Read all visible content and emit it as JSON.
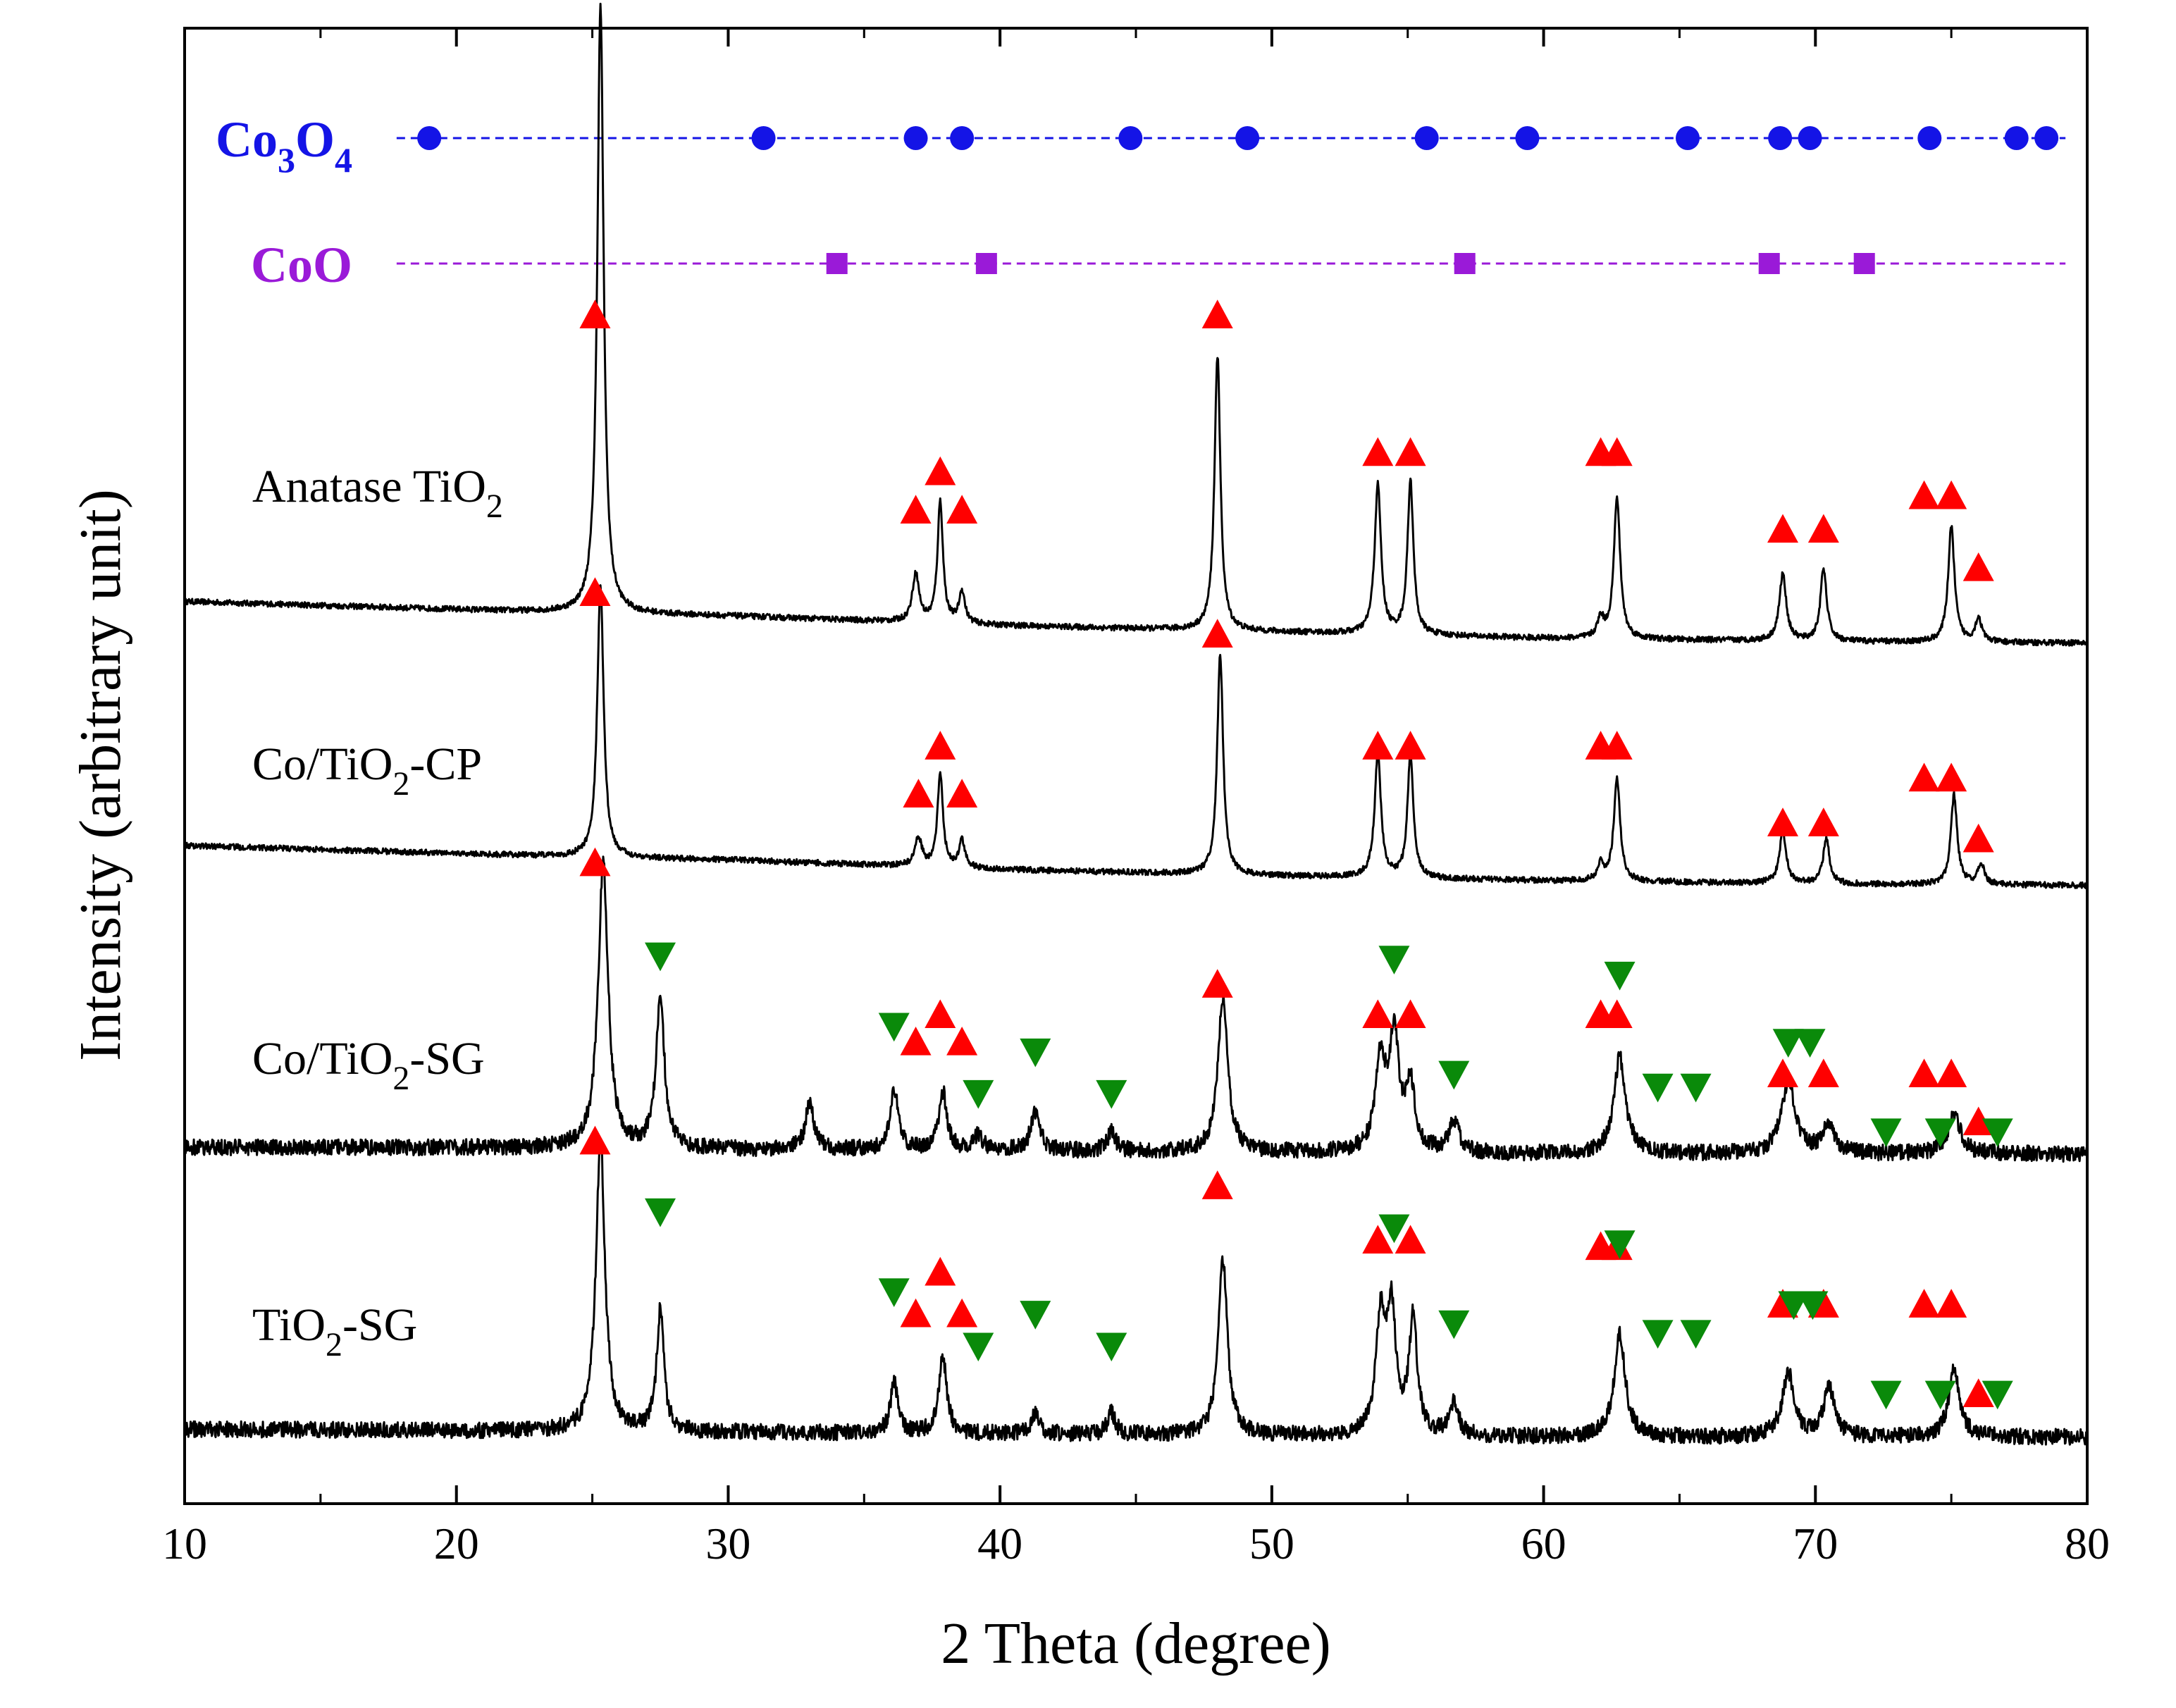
{
  "chart_data": {
    "type": "line",
    "xlabel": "2 Theta (degree)",
    "ylabel": "Intensity (arbitrary unit)",
    "xlim": [
      10,
      80
    ],
    "xticks": [
      10,
      20,
      30,
      40,
      50,
      60,
      70,
      80
    ],
    "y_ticks_shown": false,
    "colors": {
      "pattern": "#000000",
      "anatase_marker": "#ff0000",
      "rutile_marker": "#0a8a0a",
      "co3o4": "#1414e6",
      "coo": "#9a1ad8"
    },
    "reference_rows": [
      {
        "name": "Co3O4",
        "label_main": "Co",
        "label_sub1": "3",
        "label_mid": "O",
        "label_sub2": "4",
        "marker": "circle",
        "color": "#1414e6",
        "peaks": [
          19.0,
          31.3,
          36.9,
          38.6,
          44.8,
          49.1,
          55.7,
          59.4,
          65.3,
          68.7,
          69.8,
          74.2,
          77.4,
          78.5
        ]
      },
      {
        "name": "CoO",
        "label_main": "CoO",
        "marker": "square",
        "color": "#9a1ad8",
        "peaks": [
          34.0,
          39.5,
          57.1,
          68.3,
          71.8
        ]
      }
    ],
    "series": [
      {
        "name": "Anatase TiO2",
        "label_main": "Anatase TiO",
        "label_sub": "2",
        "label_tail": "",
        "baseline": [
          [
            10,
            0.31
          ],
          [
            20,
            0.26
          ],
          [
            24,
            0.24
          ],
          [
            30,
            0.22
          ],
          [
            40,
            0.16
          ],
          [
            50,
            0.12
          ],
          [
            60,
            0.08
          ],
          [
            70,
            0.06
          ],
          [
            80,
            0.05
          ]
        ],
        "noise": 0.018,
        "peaks": [
          {
            "x": 25.3,
            "h": 3.8,
            "w": 0.14
          },
          {
            "x": 36.9,
            "h": 0.3,
            "w": 0.15
          },
          {
            "x": 37.8,
            "h": 0.76,
            "w": 0.12
          },
          {
            "x": 38.6,
            "h": 0.2,
            "w": 0.13
          },
          {
            "x": 48.0,
            "h": 1.72,
            "w": 0.13
          },
          {
            "x": 53.9,
            "h": 0.93,
            "w": 0.14
          },
          {
            "x": 55.1,
            "h": 0.96,
            "w": 0.13
          },
          {
            "x": 62.1,
            "h": 0.12,
            "w": 0.14
          },
          {
            "x": 62.7,
            "h": 0.88,
            "w": 0.14
          },
          {
            "x": 68.8,
            "h": 0.42,
            "w": 0.15
          },
          {
            "x": 70.3,
            "h": 0.45,
            "w": 0.14
          },
          {
            "x": 75.0,
            "h": 0.72,
            "w": 0.14
          },
          {
            "x": 76.0,
            "h": 0.15,
            "w": 0.14
          }
        ],
        "anatase_markers": [
          {
            "x": 25.1,
            "y": 2.1
          },
          {
            "x": 36.9,
            "y": 0.88
          },
          {
            "x": 37.8,
            "y": 1.12
          },
          {
            "x": 38.6,
            "y": 0.88
          },
          {
            "x": 48.0,
            "y": 2.1
          },
          {
            "x": 53.9,
            "y": 1.24
          },
          {
            "x": 55.1,
            "y": 1.24
          },
          {
            "x": 62.1,
            "y": 1.24
          },
          {
            "x": 62.7,
            "y": 1.24
          },
          {
            "x": 68.8,
            "y": 0.76
          },
          {
            "x": 70.3,
            "y": 0.76
          },
          {
            "x": 74.0,
            "y": 0.97
          },
          {
            "x": 75.0,
            "y": 0.97
          },
          {
            "x": 76.0,
            "y": 0.52
          }
        ],
        "rutile_markers": []
      },
      {
        "name": "Co/TiO2-CP",
        "label_main": "Co/TiO",
        "label_sub": "2",
        "label_tail": "-CP",
        "baseline": [
          [
            10,
            0.3
          ],
          [
            20,
            0.25
          ],
          [
            24,
            0.23
          ],
          [
            30,
            0.21
          ],
          [
            40,
            0.15
          ],
          [
            50,
            0.11
          ],
          [
            60,
            0.08
          ],
          [
            70,
            0.06
          ],
          [
            80,
            0.05
          ]
        ],
        "noise": 0.018,
        "peaks": [
          {
            "x": 25.3,
            "h": 1.7,
            "w": 0.14
          },
          {
            "x": 37.0,
            "h": 0.18,
            "w": 0.15
          },
          {
            "x": 37.8,
            "h": 0.58,
            "w": 0.12
          },
          {
            "x": 38.6,
            "h": 0.17,
            "w": 0.13
          },
          {
            "x": 48.1,
            "h": 1.38,
            "w": 0.13
          },
          {
            "x": 53.9,
            "h": 0.77,
            "w": 0.14
          },
          {
            "x": 55.1,
            "h": 0.77,
            "w": 0.13
          },
          {
            "x": 62.1,
            "h": 0.1,
            "w": 0.14
          },
          {
            "x": 62.7,
            "h": 0.64,
            "w": 0.14
          },
          {
            "x": 68.8,
            "h": 0.32,
            "w": 0.15
          },
          {
            "x": 70.4,
            "h": 0.28,
            "w": 0.14
          },
          {
            "x": 75.1,
            "h": 0.56,
            "w": 0.14
          },
          {
            "x": 76.1,
            "h": 0.13,
            "w": 0.14
          }
        ],
        "anatase_markers": [
          {
            "x": 25.1,
            "y": 1.88
          },
          {
            "x": 37.0,
            "y": 0.62
          },
          {
            "x": 37.8,
            "y": 0.92
          },
          {
            "x": 38.6,
            "y": 0.62
          },
          {
            "x": 48.0,
            "y": 1.62
          },
          {
            "x": 53.9,
            "y": 0.92
          },
          {
            "x": 55.1,
            "y": 0.92
          },
          {
            "x": 62.1,
            "y": 0.92
          },
          {
            "x": 62.7,
            "y": 0.92
          },
          {
            "x": 68.8,
            "y": 0.44
          },
          {
            "x": 70.3,
            "y": 0.44
          },
          {
            "x": 74.0,
            "y": 0.72
          },
          {
            "x": 75.0,
            "y": 0.72
          },
          {
            "x": 76.0,
            "y": 0.34
          }
        ],
        "rutile_markers": []
      },
      {
        "name": "Co/TiO2-SG",
        "label_main": "Co/TiO",
        "label_sub": "2",
        "label_tail": "-SG",
        "baseline": [
          [
            10,
            0.12
          ],
          [
            20,
            0.12
          ],
          [
            30,
            0.11
          ],
          [
            40,
            0.1
          ],
          [
            50,
            0.09
          ],
          [
            60,
            0.08
          ],
          [
            70,
            0.08
          ],
          [
            80,
            0.08
          ]
        ],
        "noise": 0.05,
        "peaks": [
          {
            "x": 25.4,
            "h": 1.78,
            "w": 0.22
          },
          {
            "x": 27.5,
            "h": 0.95,
            "w": 0.18
          },
          {
            "x": 33.0,
            "h": 0.3,
            "w": 0.18
          },
          {
            "x": 36.1,
            "h": 0.38,
            "w": 0.18
          },
          {
            "x": 37.9,
            "h": 0.36,
            "w": 0.18
          },
          {
            "x": 39.2,
            "h": 0.1,
            "w": 0.18
          },
          {
            "x": 41.3,
            "h": 0.24,
            "w": 0.2
          },
          {
            "x": 44.1,
            "h": 0.12,
            "w": 0.18
          },
          {
            "x": 48.2,
            "h": 0.96,
            "w": 0.22
          },
          {
            "x": 54.0,
            "h": 0.55,
            "w": 0.22
          },
          {
            "x": 54.5,
            "h": 0.7,
            "w": 0.22
          },
          {
            "x": 55.1,
            "h": 0.4,
            "w": 0.2
          },
          {
            "x": 56.7,
            "h": 0.2,
            "w": 0.22
          },
          {
            "x": 62.8,
            "h": 0.6,
            "w": 0.26
          },
          {
            "x": 69.0,
            "h": 0.45,
            "w": 0.3
          },
          {
            "x": 70.5,
            "h": 0.18,
            "w": 0.26
          },
          {
            "x": 75.1,
            "h": 0.25,
            "w": 0.28
          }
        ],
        "anatase_markers": [
          {
            "x": 25.1,
            "y": 1.9
          },
          {
            "x": 36.9,
            "y": 0.78
          },
          {
            "x": 37.8,
            "y": 0.95
          },
          {
            "x": 38.6,
            "y": 0.78
          },
          {
            "x": 48.0,
            "y": 1.14
          },
          {
            "x": 53.9,
            "y": 0.95
          },
          {
            "x": 55.1,
            "y": 0.95
          },
          {
            "x": 62.1,
            "y": 0.95
          },
          {
            "x": 62.7,
            "y": 0.95
          },
          {
            "x": 68.8,
            "y": 0.58
          },
          {
            "x": 70.3,
            "y": 0.58
          },
          {
            "x": 74.0,
            "y": 0.58
          },
          {
            "x": 75.0,
            "y": 0.58
          },
          {
            "x": 76.0,
            "y": 0.28
          }
        ],
        "rutile_markers": [
          {
            "x": 27.5,
            "y": 1.32
          },
          {
            "x": 36.1,
            "y": 0.88
          },
          {
            "x": 39.2,
            "y": 0.46
          },
          {
            "x": 41.3,
            "y": 0.72
          },
          {
            "x": 44.1,
            "y": 0.46
          },
          {
            "x": 54.5,
            "y": 1.3
          },
          {
            "x": 56.7,
            "y": 0.58
          },
          {
            "x": 62.8,
            "y": 1.2
          },
          {
            "x": 64.2,
            "y": 0.5
          },
          {
            "x": 65.6,
            "y": 0.5
          },
          {
            "x": 69.0,
            "y": 0.78
          },
          {
            "x": 69.8,
            "y": 0.78
          },
          {
            "x": 72.6,
            "y": 0.22
          },
          {
            "x": 74.6,
            "y": 0.22
          },
          {
            "x": 76.7,
            "y": 0.22
          }
        ]
      },
      {
        "name": "TiO2-SG",
        "label_main": "TiO",
        "label_sub": "2",
        "label_tail": "-SG",
        "baseline": [
          [
            10,
            0.14
          ],
          [
            20,
            0.13
          ],
          [
            30,
            0.12
          ],
          [
            40,
            0.11
          ],
          [
            50,
            0.1
          ],
          [
            60,
            0.09
          ],
          [
            70,
            0.09
          ],
          [
            80,
            0.09
          ]
        ],
        "noise": 0.05,
        "peaks": [
          {
            "x": 25.3,
            "h": 1.82,
            "w": 0.2
          },
          {
            "x": 27.5,
            "h": 0.76,
            "w": 0.16
          },
          {
            "x": 36.1,
            "h": 0.32,
            "w": 0.16
          },
          {
            "x": 37.9,
            "h": 0.48,
            "w": 0.17
          },
          {
            "x": 41.3,
            "h": 0.12,
            "w": 0.18
          },
          {
            "x": 44.1,
            "h": 0.14,
            "w": 0.16
          },
          {
            "x": 48.2,
            "h": 1.1,
            "w": 0.2
          },
          {
            "x": 54.0,
            "h": 0.7,
            "w": 0.2
          },
          {
            "x": 54.4,
            "h": 0.74,
            "w": 0.2
          },
          {
            "x": 55.2,
            "h": 0.72,
            "w": 0.18
          },
          {
            "x": 56.7,
            "h": 0.2,
            "w": 0.2
          },
          {
            "x": 62.8,
            "h": 0.65,
            "w": 0.24
          },
          {
            "x": 69.0,
            "h": 0.4,
            "w": 0.26
          },
          {
            "x": 70.5,
            "h": 0.3,
            "w": 0.24
          },
          {
            "x": 75.1,
            "h": 0.42,
            "w": 0.24
          }
        ],
        "anatase_markers": [
          {
            "x": 25.1,
            "y": 1.94
          },
          {
            "x": 36.9,
            "y": 0.86
          },
          {
            "x": 37.8,
            "y": 1.12
          },
          {
            "x": 38.6,
            "y": 0.86
          },
          {
            "x": 48.0,
            "y": 1.66
          },
          {
            "x": 53.9,
            "y": 1.32
          },
          {
            "x": 55.1,
            "y": 1.32
          },
          {
            "x": 62.1,
            "y": 1.28
          },
          {
            "x": 62.7,
            "y": 1.28
          },
          {
            "x": 68.8,
            "y": 0.92
          },
          {
            "x": 70.3,
            "y": 0.92
          },
          {
            "x": 74.0,
            "y": 0.92
          },
          {
            "x": 75.0,
            "y": 0.92
          },
          {
            "x": 76.0,
            "y": 0.36
          }
        ],
        "rutile_markers": [
          {
            "x": 27.5,
            "y": 1.5
          },
          {
            "x": 36.1,
            "y": 1.0
          },
          {
            "x": 39.2,
            "y": 0.66
          },
          {
            "x": 41.3,
            "y": 0.86
          },
          {
            "x": 44.1,
            "y": 0.66
          },
          {
            "x": 54.5,
            "y": 1.4
          },
          {
            "x": 56.7,
            "y": 0.8
          },
          {
            "x": 62.8,
            "y": 1.3
          },
          {
            "x": 64.2,
            "y": 0.74
          },
          {
            "x": 65.6,
            "y": 0.74
          },
          {
            "x": 69.2,
            "y": 0.92
          },
          {
            "x": 69.9,
            "y": 0.92
          },
          {
            "x": 72.6,
            "y": 0.36
          },
          {
            "x": 74.6,
            "y": 0.36
          },
          {
            "x": 76.7,
            "y": 0.36
          }
        ]
      }
    ]
  }
}
